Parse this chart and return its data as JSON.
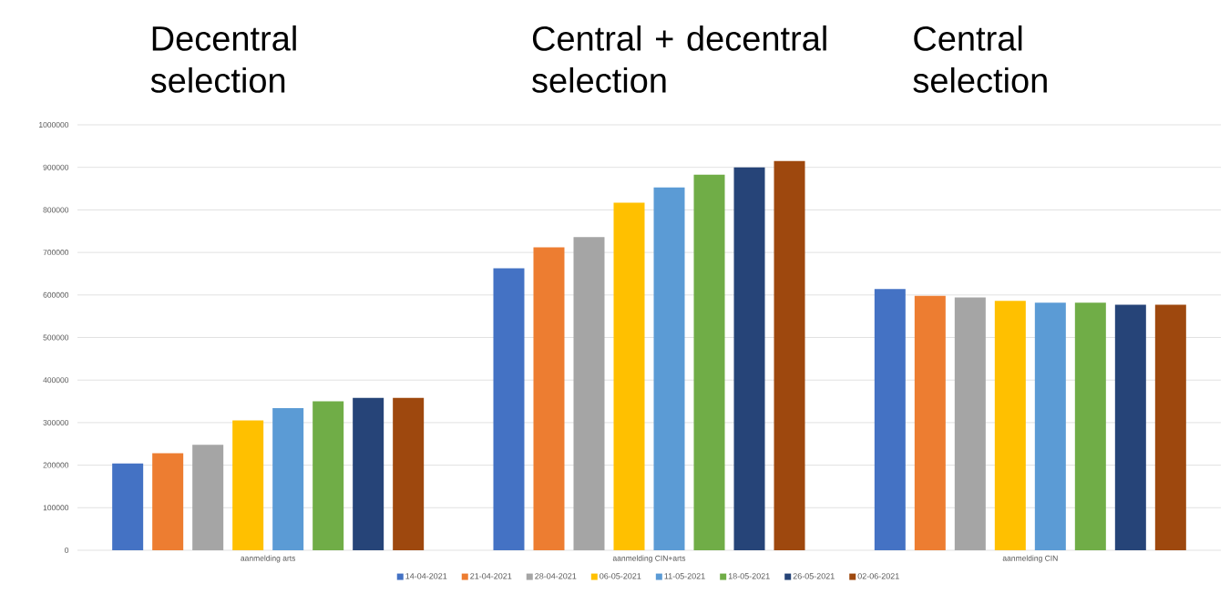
{
  "chart_data": {
    "type": "bar",
    "annotations": [
      "Decentral selection",
      "Central + decentral selection",
      "Central selection"
    ],
    "categories": [
      "aanmelding arts",
      "aanmelding CIN+arts",
      "aanmelding CIN"
    ],
    "series": [
      {
        "name": "14-04-2021",
        "color": "#4472c4",
        "values": [
          204000,
          663000,
          614000
        ]
      },
      {
        "name": "21-04-2021",
        "color": "#ed7d31",
        "values": [
          228000,
          712000,
          598000
        ]
      },
      {
        "name": "28-04-2021",
        "color": "#a5a5a5",
        "values": [
          248000,
          736000,
          594000
        ]
      },
      {
        "name": "06-05-2021",
        "color": "#ffc000",
        "values": [
          305000,
          817000,
          586000
        ]
      },
      {
        "name": "11-05-2021",
        "color": "#5b9bd5",
        "values": [
          334000,
          853000,
          582000
        ]
      },
      {
        "name": "18-05-2021",
        "color": "#70ad47",
        "values": [
          350000,
          883000,
          582000
        ]
      },
      {
        "name": "26-05-2021",
        "color": "#264478",
        "values": [
          358000,
          900000,
          577000
        ]
      },
      {
        "name": "02-06-2021",
        "color": "#9e480e",
        "values": [
          358000,
          915000,
          577000
        ]
      }
    ],
    "ylim": [
      0,
      1000000
    ],
    "yticks": [
      0,
      100000,
      200000,
      300000,
      400000,
      500000,
      600000,
      700000,
      800000,
      900000,
      1000000
    ],
    "grid": "y",
    "legend": "bottom"
  }
}
